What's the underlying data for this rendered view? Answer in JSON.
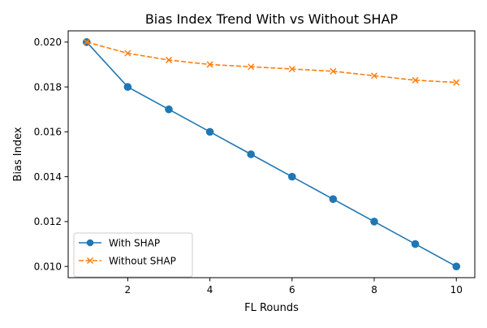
{
  "chart_data": {
    "type": "line",
    "title": "Bias Index Trend With vs Without SHAP",
    "xlabel": "FL Rounds",
    "ylabel": "Bias Index",
    "x": [
      1,
      2,
      3,
      4,
      5,
      6,
      7,
      8,
      9,
      10
    ],
    "xlim": [
      0.55,
      10.45
    ],
    "ylim": [
      0.0095,
      0.0205
    ],
    "xticks": [
      2,
      4,
      6,
      8,
      10
    ],
    "xtick_labels": [
      "2",
      "4",
      "6",
      "8",
      "10"
    ],
    "yticks": [
      0.01,
      0.012,
      0.014,
      0.016,
      0.018,
      0.02
    ],
    "ytick_labels": [
      "0.010",
      "0.012",
      "0.014",
      "0.016",
      "0.018",
      "0.020"
    ],
    "grid": false,
    "legend_position": "bottom-left",
    "series": [
      {
        "name": "With SHAP",
        "values": [
          0.02,
          0.018,
          0.017,
          0.016,
          0.015,
          0.014,
          0.013,
          0.012,
          0.011,
          0.01
        ],
        "color": "#1f77b4",
        "line_style": "solid",
        "marker": "circle"
      },
      {
        "name": "Without SHAP",
        "values": [
          0.02,
          0.0195,
          0.0192,
          0.019,
          0.0189,
          0.0188,
          0.0187,
          0.0185,
          0.0183,
          0.0182
        ],
        "color": "#ff7f0e",
        "line_style": "dashed",
        "marker": "x"
      }
    ]
  }
}
